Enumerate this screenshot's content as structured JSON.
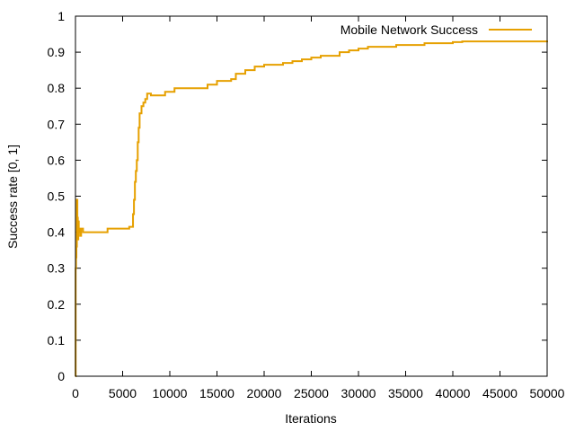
{
  "chart_data": {
    "type": "line",
    "title": "",
    "xlabel": "Iterations",
    "ylabel": "Success rate [0, 1]",
    "xlim": [
      0,
      50000
    ],
    "ylim": [
      0,
      1
    ],
    "x_ticks": [
      0,
      5000,
      10000,
      15000,
      20000,
      25000,
      30000,
      35000,
      40000,
      45000,
      50000
    ],
    "x_tick_labels": [
      "0",
      "5000",
      "10000",
      "15000",
      "20000",
      "25000",
      "30000",
      "35000",
      "40000",
      "45000",
      "50000"
    ],
    "y_ticks": [
      0,
      0.1,
      0.2,
      0.3,
      0.4,
      0.5,
      0.6,
      0.7,
      0.8,
      0.9,
      1
    ],
    "y_tick_labels": [
      "0",
      "0.1",
      "0.2",
      "0.3",
      "0.4",
      "0.5",
      "0.6",
      "0.7",
      "0.8",
      "0.9",
      "1"
    ],
    "grid": false,
    "legend_position": "top-right",
    "series": [
      {
        "name": "Mobile Network Success",
        "color": "#e6a000",
        "style": "steps",
        "x": [
          0,
          20,
          60,
          100,
          150,
          200,
          250,
          300,
          350,
          400,
          500,
          600,
          800,
          1500,
          3000,
          3400,
          5000,
          5700,
          6000,
          6100,
          6200,
          6300,
          6400,
          6500,
          6600,
          6700,
          6800,
          7000,
          7200,
          7400,
          7600,
          8000,
          9500,
          10500,
          12000,
          14000,
          15000,
          16500,
          17000,
          18000,
          19000,
          20000,
          21000,
          22000,
          23000,
          24000,
          25000,
          26000,
          27000,
          28000,
          29000,
          30000,
          31000,
          32000,
          33000,
          34000,
          35000,
          36000,
          37000,
          38000,
          39000,
          40000,
          41000,
          45000,
          50000
        ],
        "y": [
          0,
          0.3,
          0.33,
          0.36,
          0.49,
          0.44,
          0.38,
          0.43,
          0.4,
          0.41,
          0.39,
          0.41,
          0.4,
          0.4,
          0.4,
          0.41,
          0.41,
          0.415,
          0.415,
          0.45,
          0.49,
          0.54,
          0.57,
          0.6,
          0.65,
          0.69,
          0.73,
          0.75,
          0.76,
          0.77,
          0.785,
          0.78,
          0.79,
          0.8,
          0.8,
          0.81,
          0.82,
          0.825,
          0.84,
          0.85,
          0.86,
          0.865,
          0.865,
          0.87,
          0.875,
          0.88,
          0.885,
          0.89,
          0.89,
          0.9,
          0.905,
          0.91,
          0.915,
          0.915,
          0.915,
          0.92,
          0.92,
          0.92,
          0.925,
          0.925,
          0.925,
          0.928,
          0.93,
          0.93,
          0.932
        ]
      }
    ]
  }
}
